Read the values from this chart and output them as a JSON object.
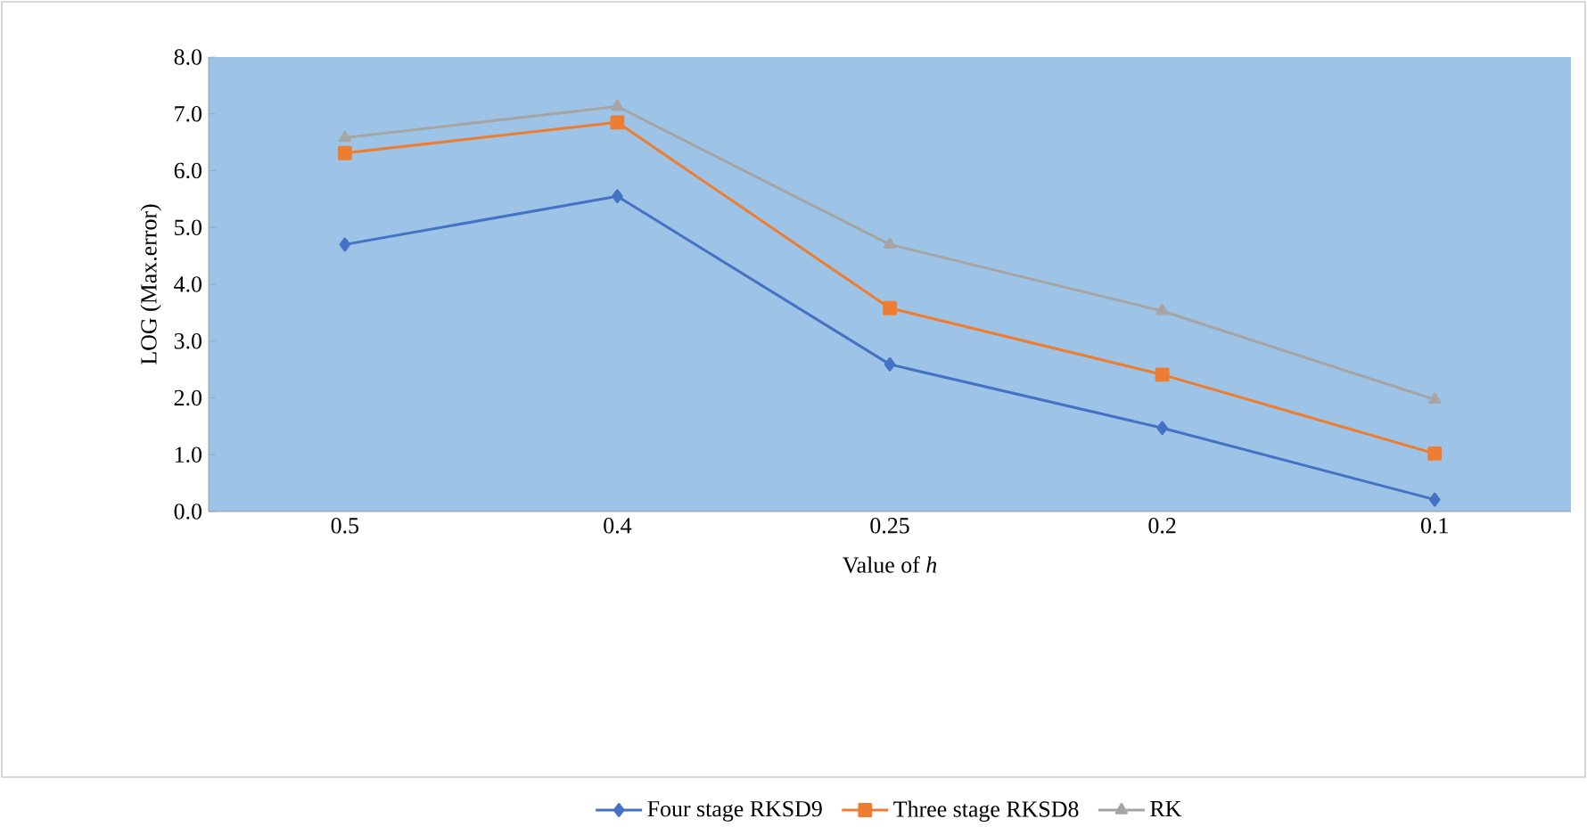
{
  "chart_data": {
    "type": "line",
    "xlabel": "Value of *h*",
    "ylabel": "LOG (Max.error)",
    "categories": [
      "0.5",
      "0.4",
      "0.25",
      "0.2",
      "0.1"
    ],
    "series": [
      {
        "name": "Four stage RKSD9",
        "color": "#4472c4",
        "marker": "diamond",
        "values": [
          4.7,
          5.55,
          2.59,
          1.47,
          0.21
        ]
      },
      {
        "name": "Three stage RKSD8",
        "color": "#ed7d31",
        "marker": "square",
        "values": [
          6.31,
          6.85,
          3.58,
          2.41,
          1.02
        ]
      },
      {
        "name": "RK",
        "color": "#a5a5a5",
        "marker": "triangle",
        "values": [
          6.58,
          7.13,
          4.7,
          3.53,
          1.97
        ]
      }
    ],
    "ylim": [
      0,
      8
    ],
    "yticks": [
      {
        "value": 0,
        "label": "0.0"
      },
      {
        "value": 1,
        "label": "1.0"
      },
      {
        "value": 2,
        "label": "2.0"
      },
      {
        "value": 3,
        "label": "3.0"
      },
      {
        "value": 4,
        "label": "4.0"
      },
      {
        "value": 5,
        "label": "5.0"
      },
      {
        "value": 6,
        "label": "6.0"
      },
      {
        "value": 7,
        "label": "7.0"
      },
      {
        "value": 8,
        "label": "8.0"
      }
    ],
    "grid": false,
    "legend": "bottom",
    "line_style": "solid"
  }
}
